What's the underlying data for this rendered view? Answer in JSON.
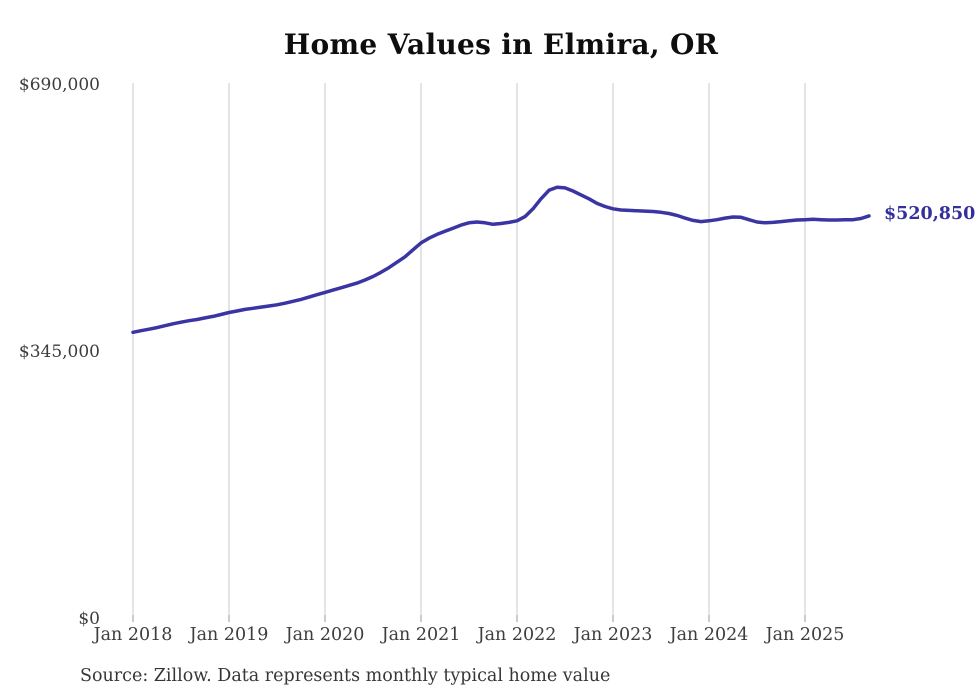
{
  "title": "Home Values in Elmira, OR",
  "source_note": "Source: Zillow. Data represents monthly typical home value",
  "end_label": "$520,850",
  "colors": {
    "line": "#3a35a3",
    "end_label": "#33309c",
    "grid": "#c9c9c9",
    "tick": "#9a9a9a",
    "axis_text": "#3d3d3d",
    "title_text": "#0e0e0e",
    "source_text": "#363636",
    "background": "#ffffff"
  },
  "chart_data": {
    "type": "line",
    "title": "Home Values in Elmira, OR",
    "xlabel": "",
    "ylabel": "",
    "ylim": [
      0,
      690000
    ],
    "y_tick_values": [
      0,
      345000,
      690000
    ],
    "y_tick_labels": [
      "$0",
      "$345,000",
      "$690,000"
    ],
    "x_tick_labels": [
      "Jan 2018",
      "Jan 2019",
      "Jan 2020",
      "Jan 2021",
      "Jan 2022",
      "Jan 2023",
      "Jan 2024",
      "Jan 2025"
    ],
    "grid": "vertical-only",
    "legend_position": "none",
    "frequency": "monthly",
    "start_month": "Jan 2018",
    "end_month": "Sep 2025",
    "last_value": 520850,
    "last_value_label": "$520,850",
    "series": [
      {
        "name": "Typical home value",
        "values": [
          370500,
          372500,
          374500,
          376500,
          379000,
          381500,
          383500,
          385500,
          387000,
          389000,
          391000,
          393500,
          396000,
          398000,
          400000,
          401500,
          403000,
          404500,
          406000,
          408000,
          410500,
          413000,
          416000,
          419000,
          422000,
          425000,
          428000,
          431000,
          434000,
          438000,
          442500,
          448000,
          454000,
          461000,
          468000,
          477000,
          486000,
          492000,
          497000,
          501000,
          505000,
          509000,
          512000,
          513000,
          512000,
          510000,
          511000,
          512500,
          514500,
          520000,
          530000,
          543000,
          554000,
          558000,
          557000,
          553000,
          548000,
          543000,
          537000,
          533000,
          530000,
          528500,
          528000,
          527500,
          527000,
          526500,
          525500,
          524000,
          521500,
          518000,
          515000,
          513500,
          514500,
          516000,
          518000,
          519500,
          519000,
          516000,
          513000,
          512000,
          512500,
          513500,
          514500,
          515500,
          516000,
          516500,
          516000,
          515500,
          515500,
          516000,
          516000,
          517500,
          520850
        ]
      }
    ]
  }
}
